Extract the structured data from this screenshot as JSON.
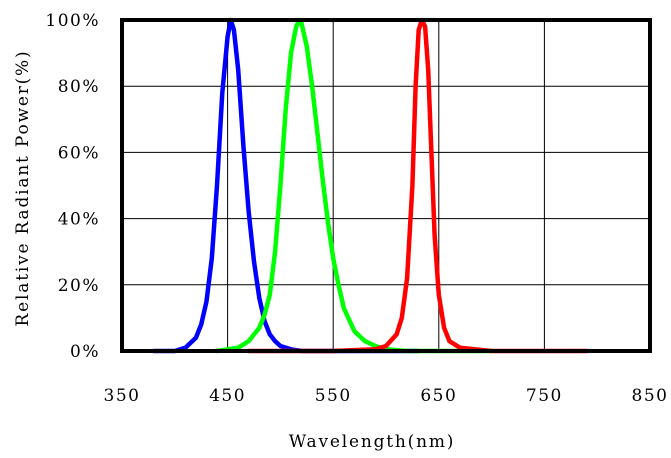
{
  "chart_data": {
    "type": "line",
    "title": "",
    "xlabel": "Wavelength(nm)",
    "ylabel": "Relative Radiant Power(%)",
    "xlim": [
      350,
      850
    ],
    "ylim": [
      0,
      100
    ],
    "x_ticks": [
      "350",
      "450",
      "550",
      "650",
      "750",
      "850"
    ],
    "y_ticks": [
      "0%",
      "20%",
      "40%",
      "60%",
      "80%",
      "100%"
    ],
    "grid": true,
    "legend": "none",
    "series": [
      {
        "color": "#0000ff",
        "x": [
          380,
          400,
          410,
          420,
          425,
          430,
          435,
          440,
          445,
          450,
          453,
          456,
          460,
          465,
          470,
          475,
          480,
          485,
          490,
          495,
          500,
          510,
          520,
          540,
          560,
          600,
          630
        ],
        "y": [
          0,
          0,
          1,
          4,
          8,
          15,
          28,
          50,
          78,
          95,
          100,
          97,
          85,
          62,
          42,
          27,
          16,
          9,
          5,
          3,
          1.5,
          0.5,
          0,
          0,
          0,
          0,
          0
        ]
      },
      {
        "color": "#00ff00",
        "x": [
          440,
          460,
          470,
          480,
          485,
          490,
          495,
          500,
          505,
          510,
          515,
          518,
          520,
          525,
          530,
          535,
          540,
          545,
          550,
          555,
          560,
          570,
          580,
          590,
          600,
          620,
          650,
          700
        ],
        "y": [
          0,
          1,
          3,
          7,
          11,
          17,
          30,
          50,
          73,
          90,
          98,
          100,
          99,
          92,
          80,
          66,
          52,
          39,
          28,
          20,
          13,
          6,
          3,
          1.5,
          0.5,
          0,
          0,
          0
        ]
      },
      {
        "color": "#ff0000",
        "x": [
          470,
          550,
          590,
          600,
          610,
          615,
          620,
          625,
          628,
          631,
          634,
          637,
          640,
          643,
          646,
          650,
          655,
          660,
          670,
          700,
          790
        ],
        "y": [
          0,
          0,
          0.5,
          1.5,
          5,
          10,
          22,
          50,
          80,
          97,
          100,
          98,
          85,
          60,
          35,
          17,
          7,
          3,
          1,
          0,
          0
        ]
      }
    ]
  }
}
